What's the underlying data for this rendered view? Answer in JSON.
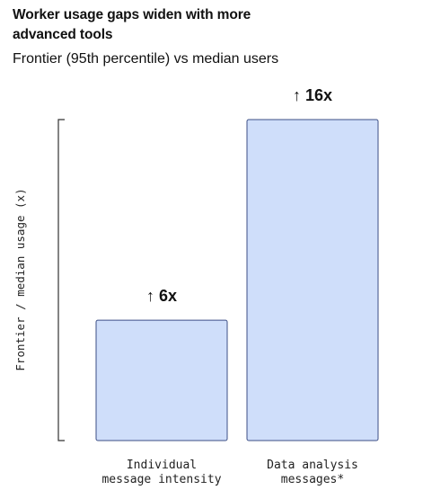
{
  "chart_data": {
    "type": "bar",
    "title": "Worker usage gaps widen with more advanced tools",
    "subtitle": "Frontier (95th percentile) vs median users",
    "ylabel": "Frontier / median usage (x)",
    "xlabel": "",
    "categories": [
      [
        "Individual",
        "message intensity"
      ],
      [
        "Data analysis",
        "messages*"
      ]
    ],
    "values": [
      6,
      16
    ],
    "data_labels": [
      "↑ 6x",
      "↑ 16x"
    ],
    "ylim": [
      0,
      16
    ],
    "grid": false,
    "colors": {
      "bar_fill": "#cfdefa",
      "bar_stroke": "#3d4f86",
      "axis": "#333333"
    }
  }
}
